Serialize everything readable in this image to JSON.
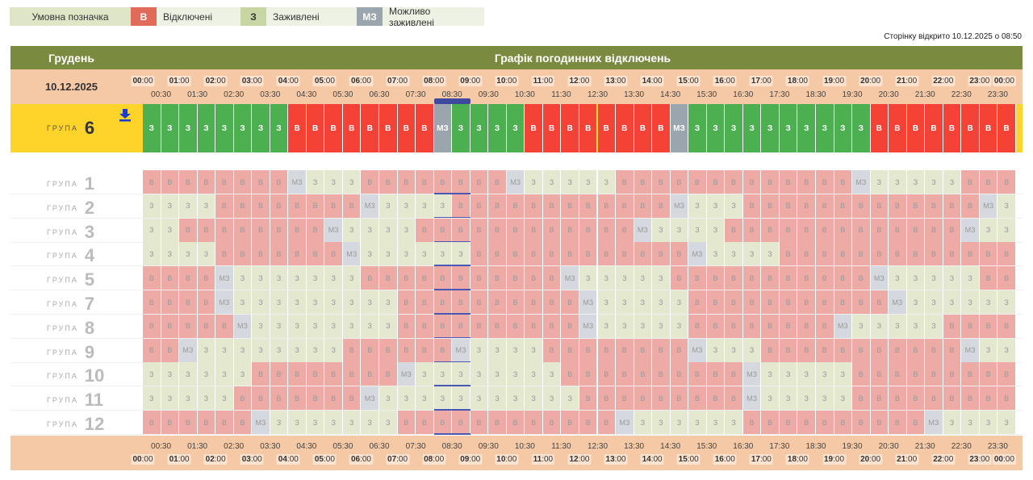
{
  "legend": {
    "title": "Умовна позначка",
    "items": [
      {
        "code": "В",
        "label": "Відключені",
        "bg": "#e06b5a",
        "fg": "#fff"
      },
      {
        "code": "З",
        "label": "Заживлені",
        "bg": "#c8d6a3",
        "fg": "#333"
      },
      {
        "code": "МЗ",
        "label": "Можливо заживлені",
        "bg": "#9aa5ad",
        "fg": "#fff"
      }
    ]
  },
  "opened_text": "Сторінку відкрито 10.12.2025 о 08:50",
  "header": {
    "month": "Грудень",
    "title": "Графік погодинних відключень"
  },
  "date": "10.12.2025",
  "hours": [
    "00",
    "01",
    "02",
    "03",
    "04",
    "05",
    "06",
    "07",
    "08",
    "09",
    "10",
    "11",
    "12",
    "13",
    "14",
    "15",
    "16",
    "17",
    "18",
    "19",
    "20",
    "21",
    "22",
    "23",
    "00"
  ],
  "minutes": ":00",
  "half_hours": [
    "00:30",
    "01:30",
    "02:30",
    "03:30",
    "04:30",
    "05:30",
    "06:30",
    "07:30",
    "08:30",
    "09:30",
    "10:30",
    "11:30",
    "12:30",
    "13:30",
    "14:30",
    "15:30",
    "16:30",
    "17:30",
    "18:30",
    "19:30",
    "20:30",
    "21:30",
    "22:30",
    "23:30"
  ],
  "now_slot": 16,
  "group_word": "ГРУПА",
  "my_group": {
    "number": "6",
    "download_icon": "download-icon",
    "slots": "ЗЗЗЗЗЗЗЗВВВВВВВВ|ЗЗЗЗВВВВВВВВ|ЗЗЗЗЗЗЗЗЗЗВВВВВВВВ|ЗЗЗЗ"
  },
  "colors": {
    "my_off": "#f44336",
    "my_on": "#4caf50",
    "my_maybe": "#9aa5ad",
    "off": "#eeaaa5",
    "on": "#e3e8cf",
    "maybe": "#d5d9df"
  },
  "groups": [
    {
      "number": "1",
      "slots": "ВВВВВВВВ|ЗЗЗВВВВВВВВ|ЗЗЗЗЗВВВВВВВВВВВВВ|ЗЗЗЗЗВВВВ|ЗЗЗ"
    },
    {
      "number": "2",
      "slots": "ЗЗЗЗВВВВВВВВ|ЗЗЗЗВВВВВВВВВВВВ|ЗЗЗВВВВВВВВВВВВВ|ЗЗЗЗЗЗЗЗЗЗВВВВ"
    },
    {
      "number": "3",
      "slots": "ЗЗВВВВВВВВ|ЗЗЗЗВВВВВВВВВВВВ|ЗЗЗЗВВВВВВВВВВВВВ|ЗЗЗЗЗЗЗЗЗЗВВВВ"
    },
    {
      "number": "4",
      "slots": "ЗЗЗЗВВВВВВВ|ЗЗЗЗЗЗВВВВВВВВВВВВ|ЗЗЗЗВВВВВВВВВВВВВ|ЗЗЗЗЗЗЗВВВВВ"
    },
    {
      "number": "5",
      "slots": "ВВВВ|ЗЗЗЗЗЗЗВВВВВВВВВВВ|ЗЗЗЗЗВВВВВВВВВВВ|ЗЗЗЗЗВВВВВВВВ|ЗЗЗ"
    },
    {
      "number": "7",
      "slots": "ВВВВ|ЗЗЗЗЗЗЗЗЗВВВВВВВВВВ|ЗЗЗЗЗВВВВВВВВВВВ|ЗЗЗЗЗЗЗВВВВВВВВ|ЗЗЗ"
    },
    {
      "number": "8",
      "slots": "ВВВВВ|ЗЗЗЗЗЗЗЗВВВВВВВВВВ|ЗЗЗЗЗВВВВВВВВ|ЗЗЗЗЗВВВВВВВВВ|ЗЗЗЗЗЗ"
    },
    {
      "number": "9",
      "slots": "ВВ|ЗЗЗЗЗЗЗЗВВВВВВ|ЗЗЗЗВВВВВВВВ|ЗЗЗВВВВВВВВВВВ|ЗЗЗЗЗЗЗЗВВВВ"
    },
    {
      "number": "10",
      "slots": "ЗЗЗЗЗЗВВВВВВВВ|ЗЗЗЗЗЗЗЗВВВВВВВВВВ|ЗЗЗЗЗВВВВВВВВВВВВ|ЗЗЗЗЗЗЗВ"
    },
    {
      "number": "11",
      "slots": "ЗЗЗЗЗВВВВВВВ|ЗЗЗЗЗЗЗЗЗЗЗВВВВВВВВВ|ЗЗЗЗЗВВВВВВВВВВ|ЗЗЗЗЗЗЗВВВВ"
    },
    {
      "number": "12",
      "slots": "ВВВВВВ|ЗЗЗЗЗЗЗВВВВВВВВВВВВ|ЗЗЗЗЗЗВВВВВВВВВВ|ЗЗЗЗЗЗЗВВВВВ|"
    }
  ],
  "cell_text": {
    "off": "В",
    "on": "З",
    "maybe": "МЗ"
  }
}
